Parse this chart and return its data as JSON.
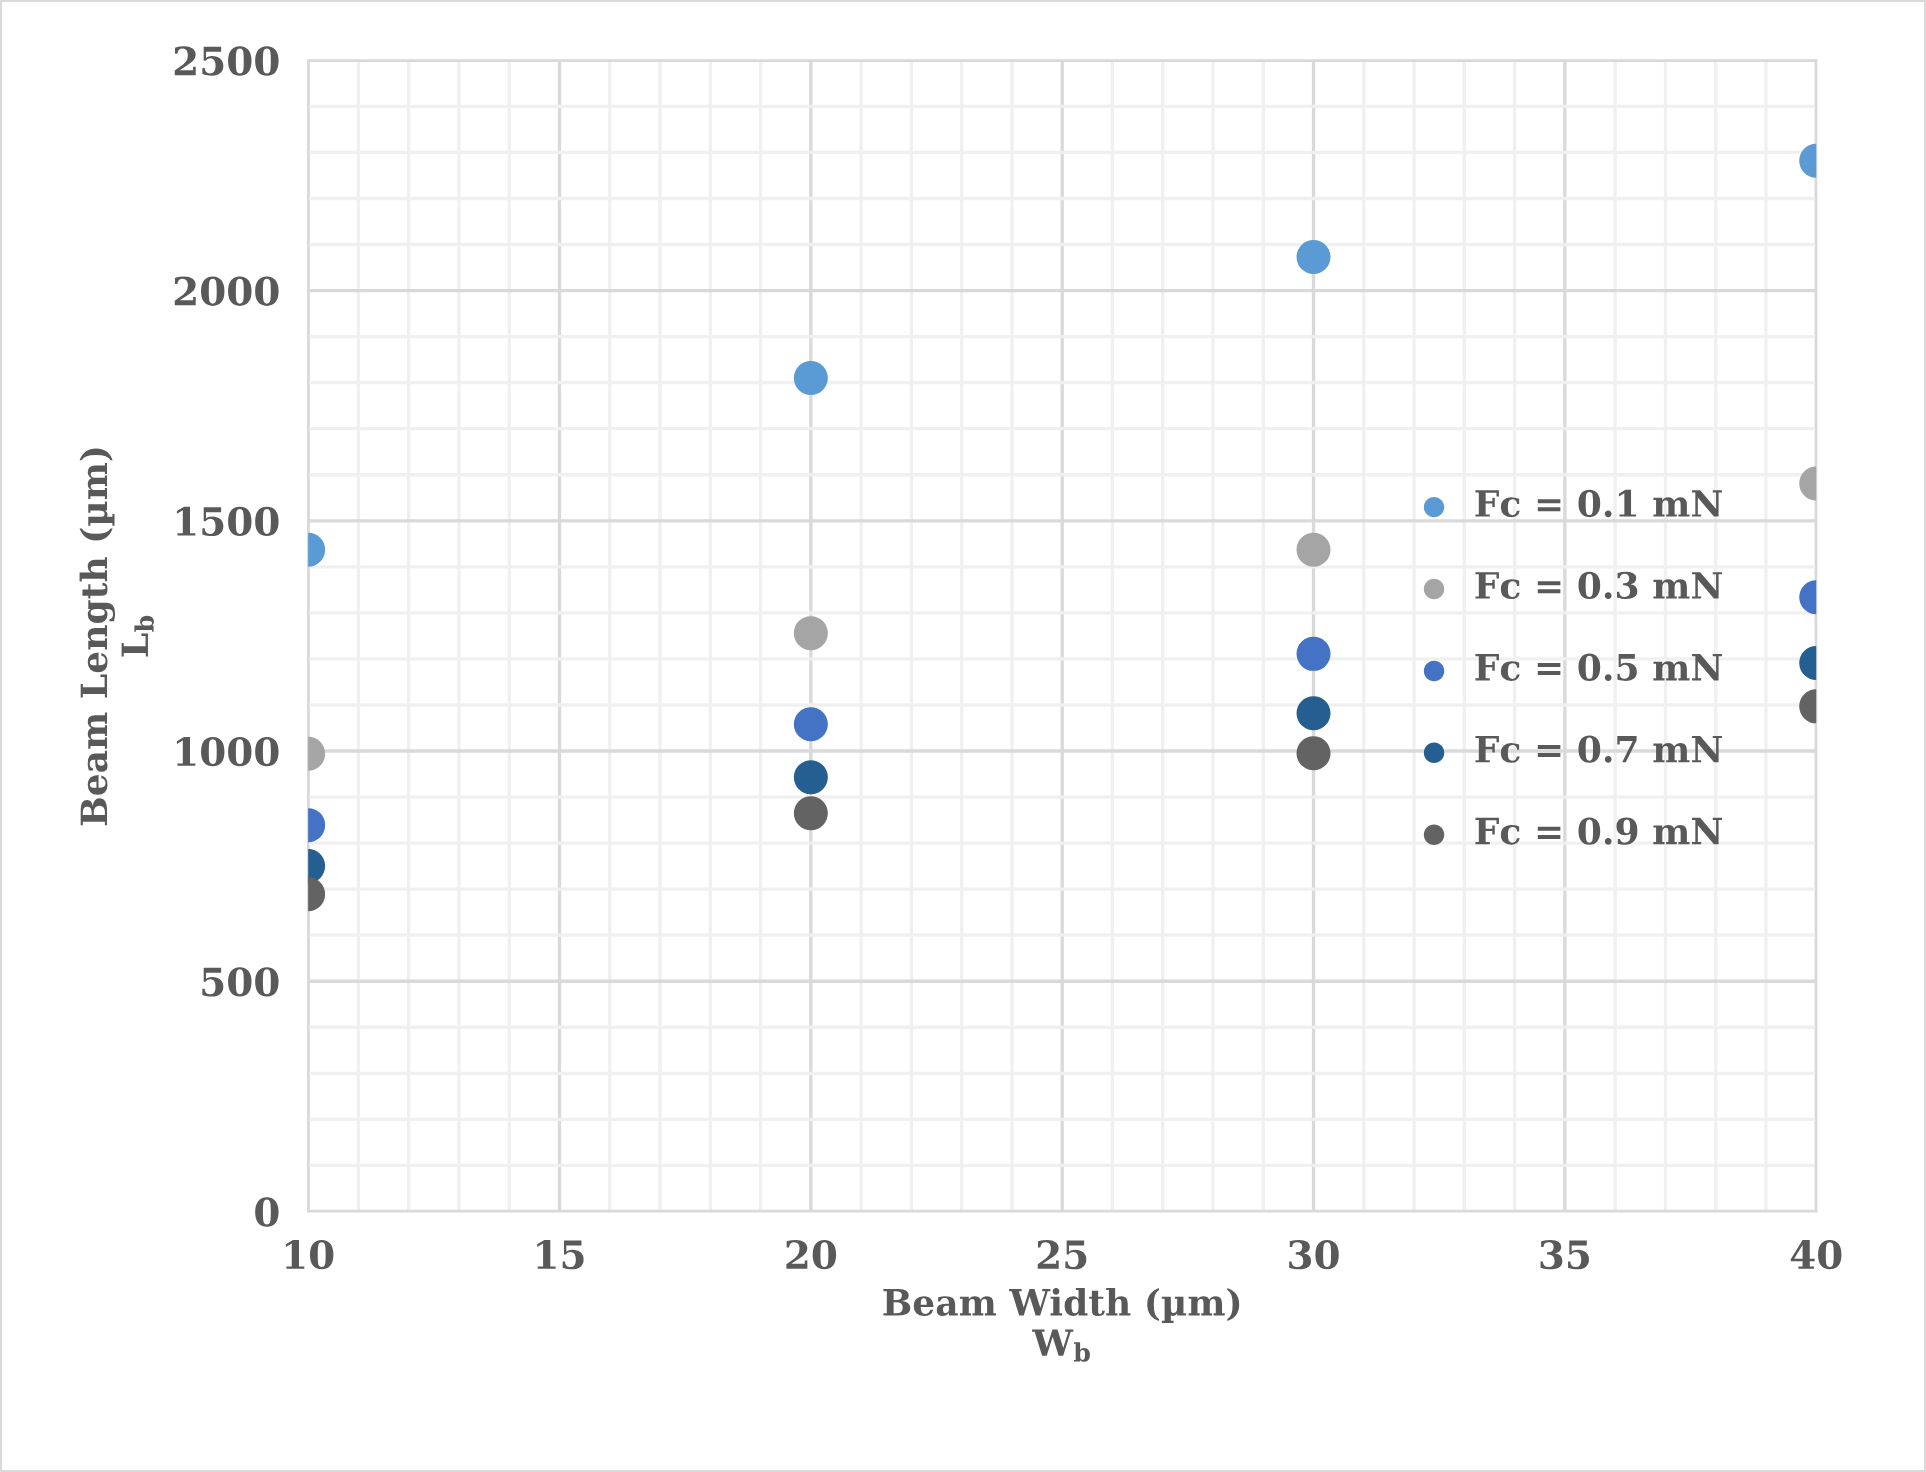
{
  "chart_data": {
    "type": "scatter",
    "xlabel": "Beam Width (µm)\nW$_{b}$",
    "ylabel": "Beam Length (µm)\nL$_{b}$",
    "x": [
      10,
      20,
      30,
      40
    ],
    "series": [
      {
        "name": "Fc = 0.1 mN",
        "color": "#5b9bd5",
        "values": [
          1437,
          1810,
          2073,
          2282
        ]
      },
      {
        "name": "Fc = 0.3 mN",
        "color": "#a5a5a5",
        "values": [
          994,
          1256,
          1437,
          1581
        ]
      },
      {
        "name": "Fc = 0.5 mN",
        "color": "#4472c4",
        "values": [
          839,
          1058,
          1211,
          1334
        ]
      },
      {
        "name": "Fc = 0.7 mN",
        "color": "#255e91",
        "values": [
          750,
          943,
          1082,
          1191
        ]
      },
      {
        "name": "Fc = 0.9 mN",
        "color": "#636363",
        "values": [
          689,
          865,
          995,
          1097
        ]
      }
    ],
    "xlim": [
      10,
      40
    ],
    "xticks": [
      10,
      15,
      20,
      25,
      30,
      35,
      40
    ],
    "ylim": [
      0,
      2500
    ],
    "yticks": [
      0,
      500,
      1000,
      1500,
      2000,
      2500
    ],
    "grid": true,
    "legend": "right",
    "marker": "circle"
  }
}
